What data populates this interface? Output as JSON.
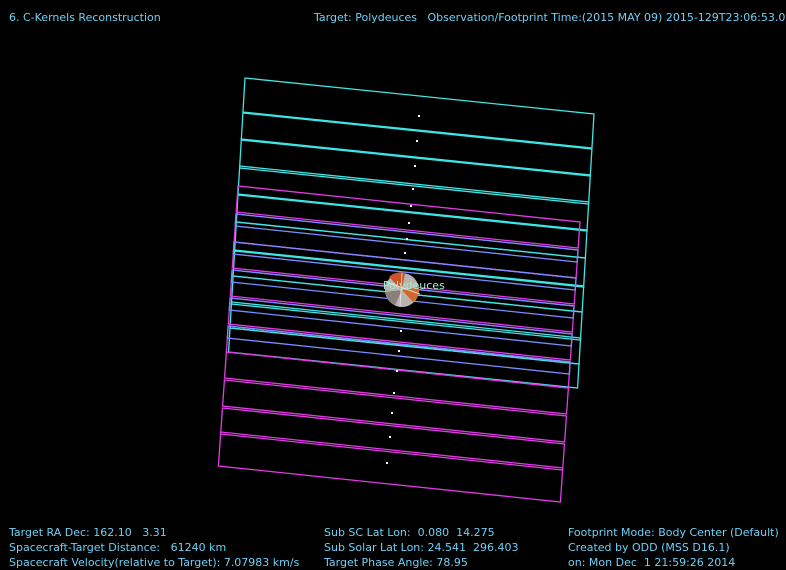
{
  "header": {
    "title": "6. C-Kernels Reconstruction",
    "target_info": "Target: Polydeuces   Observation/Footprint Time:(2015 MAY 09) 2015-129T23:06:53.0"
  },
  "scene": {
    "body_label": "Polydeuces",
    "colors": {
      "cyan": "#3ee6e6",
      "magenta": "#e23be6",
      "blue": "#7a8cff",
      "text": "#6fd0f6"
    }
  },
  "footer": {
    "left": [
      "Target RA Dec: 162.10   3.31",
      "Spacecraft-Target Distance:   61240 km",
      "Spacecraft Velocity(relative to Target): 7.07983 km/s"
    ],
    "center": [
      "Sub SC Lat Lon:  0.080  14.275",
      "Sub Solar Lat Lon: 24.541  296.403",
      "Target Phase Angle: 78.95"
    ],
    "right": [
      "Footprint Mode: Body Center (Default)",
      "Created by ODD (MSS D16.1)",
      "on: Mon Dec  1 21:59:26 2014"
    ]
  }
}
